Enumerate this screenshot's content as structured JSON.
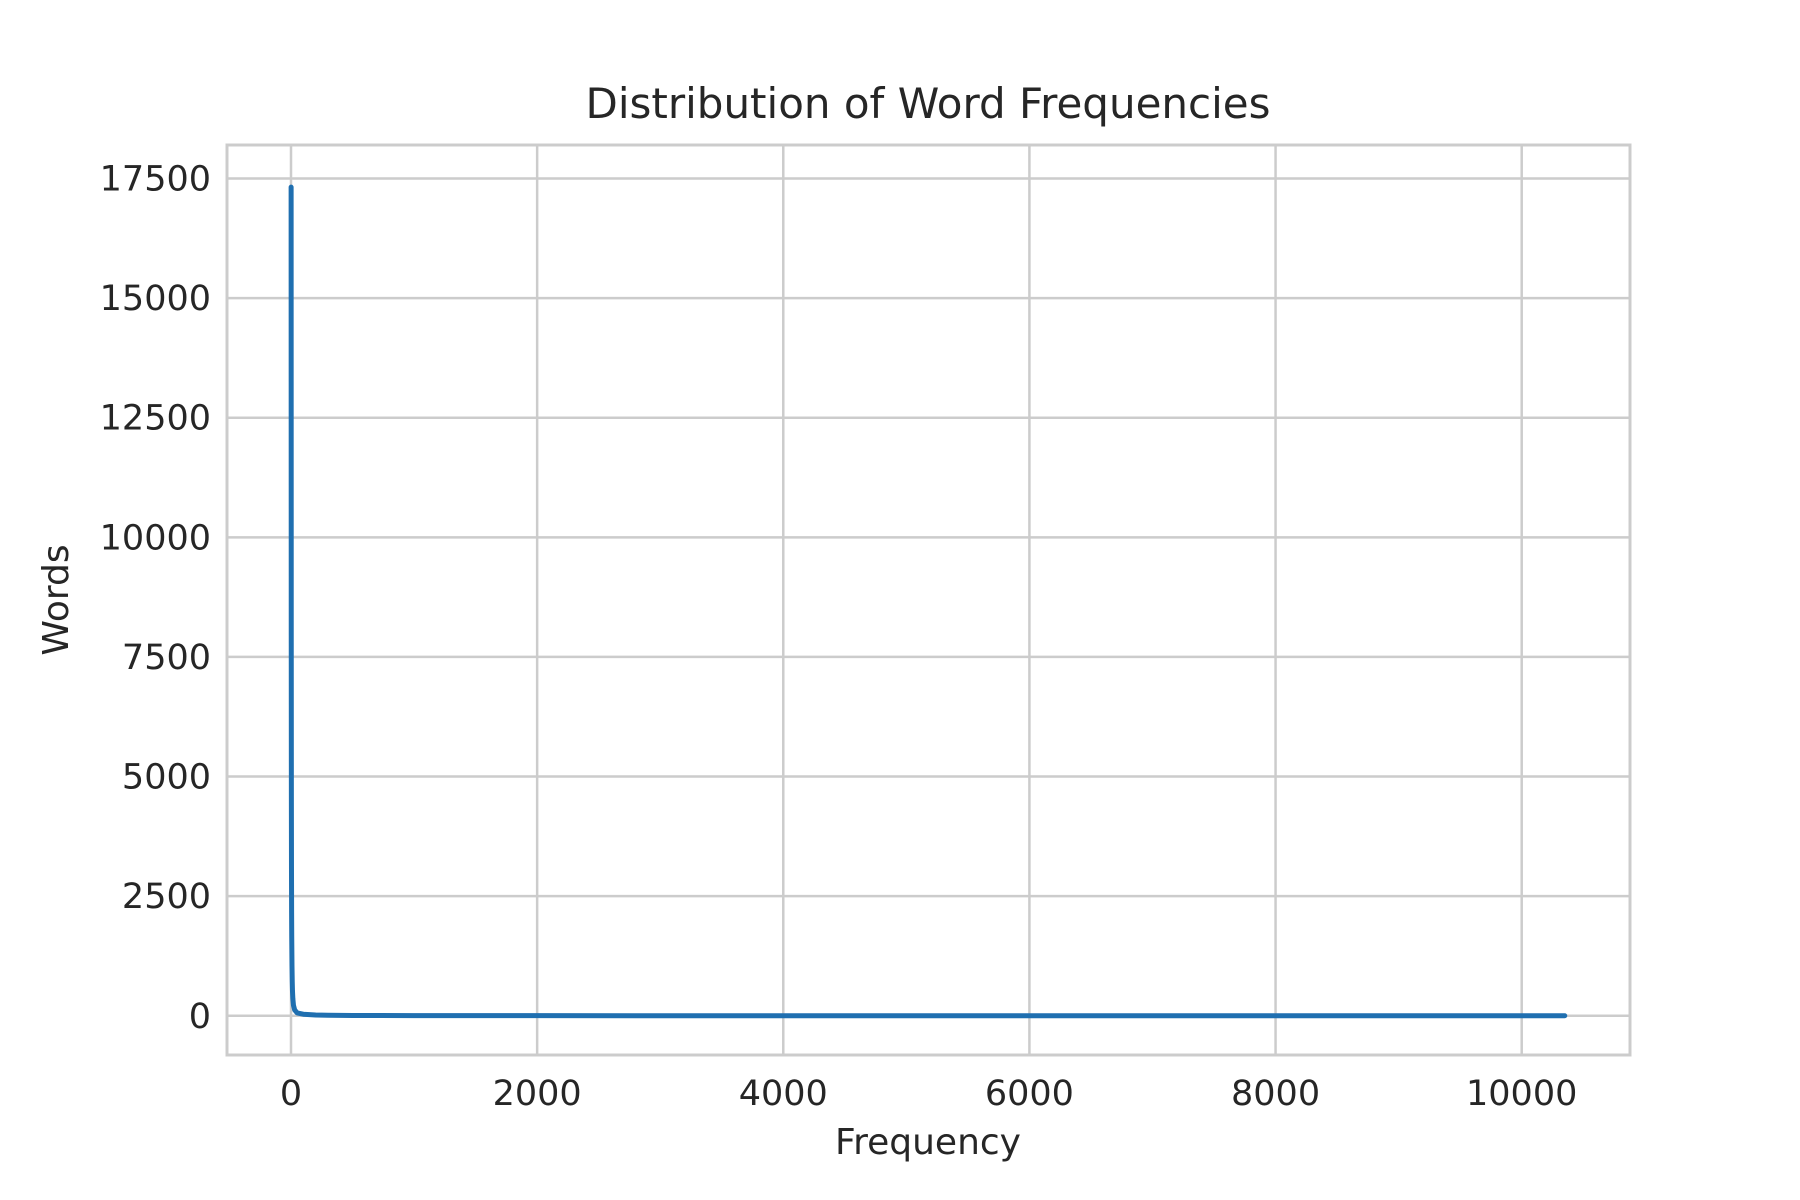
{
  "chart_data": {
    "type": "line",
    "title": "Distribution of Word Frequencies",
    "xlabel": "Frequency",
    "ylabel": "Words",
    "xlim": [
      -520,
      10880
    ],
    "ylim": [
      -820,
      18200
    ],
    "x_ticks": [
      0,
      2000,
      4000,
      6000,
      8000,
      10000
    ],
    "y_ticks": [
      0,
      2500,
      5000,
      7500,
      10000,
      12500,
      15000,
      17500
    ],
    "grid": true,
    "legend": "none",
    "series": [
      {
        "color": "#1f6fb0",
        "points": [
          [
            1,
            17320
          ],
          [
            2,
            8100
          ],
          [
            3,
            4600
          ],
          [
            4,
            3050
          ],
          [
            5,
            2150
          ],
          [
            6,
            1650
          ],
          [
            8,
            1050
          ],
          [
            10,
            720
          ],
          [
            12,
            520
          ],
          [
            15,
            360
          ],
          [
            20,
            220
          ],
          [
            30,
            120
          ],
          [
            50,
            60
          ],
          [
            100,
            32
          ],
          [
            200,
            16
          ],
          [
            300,
            10
          ],
          [
            500,
            6
          ],
          [
            1000,
            3
          ],
          [
            2000,
            2
          ],
          [
            4000,
            1
          ],
          [
            6000,
            1
          ],
          [
            8000,
            1
          ],
          [
            10000,
            1
          ],
          [
            10350,
            1
          ]
        ]
      }
    ]
  }
}
